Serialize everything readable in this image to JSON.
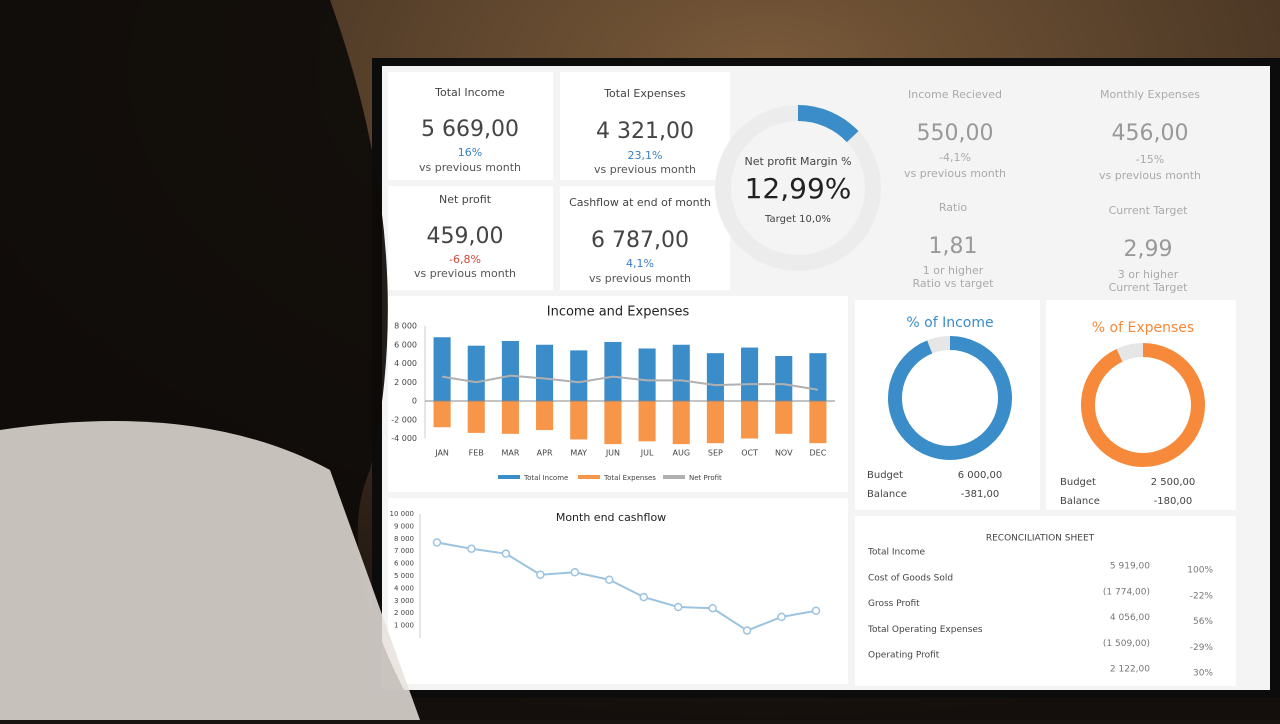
{
  "kpis": [
    {
      "label": "Total Income",
      "value": "5 669,00",
      "lines": [
        "16%",
        "vs previous month"
      ]
    },
    {
      "label": "Total Expenses",
      "value": "4 321,00",
      "lines": [
        "23,1%",
        "vs previous month"
      ]
    },
    {
      "label": "Net profit",
      "value": "459,00",
      "lines": [
        "-6,8%",
        "vs previous month"
      ]
    },
    {
      "label": "Cashflow at end of month",
      "value": "6 787,00",
      "lines": [
        "4,1%",
        "vs previous month"
      ]
    },
    {
      "label": "Income Recieved",
      "value": "550,00",
      "lines": [
        "-4,1%",
        "vs previous month"
      ]
    },
    {
      "label": "Monthly Expenses",
      "value": "456,00",
      "lines": [
        "-15%",
        "vs previous month"
      ]
    },
    {
      "label": "Ratio",
      "value": "1,81",
      "lines": [
        "1 or higher",
        "Ratio vs target"
      ]
    },
    {
      "label": "Current Target",
      "value": "2,99",
      "lines": [
        "3 or higher",
        "Current Target"
      ]
    }
  ],
  "chart_data": [
    {
      "type": "gauge",
      "title": "Net profit Margin %",
      "values": [
        12.99
      ],
      "value_labels": [
        "12,99%"
      ],
      "subtitle": "Target 10,0%",
      "color": "#3a8dc9"
    },
    {
      "type": "bar",
      "title": "Income and Expenses",
      "categories": [
        "JAN",
        "FEB",
        "MAR",
        "APR",
        "MAY",
        "JUN",
        "JUL",
        "AUG",
        "SEP",
        "OCT",
        "NOV",
        "DEC"
      ],
      "series": [
        {
          "name": "Total Income",
          "color": "#3a8dc9",
          "values": [
            6800,
            5900,
            6400,
            6000,
            5400,
            6300,
            5600,
            6000,
            5100,
            5700,
            4800,
            5100
          ]
        },
        {
          "name": "Total Expenses",
          "color": "#f79548",
          "values": [
            -2800,
            -3400,
            -3500,
            -3100,
            -4100,
            -4600,
            -4300,
            -4600,
            -4500,
            -4000,
            -3500,
            -4500
          ]
        },
        {
          "name": "Net Profit",
          "color": "#b0b0b0",
          "values": [
            2600,
            2000,
            2700,
            2400,
            2000,
            2600,
            2200,
            2200,
            1700,
            1800,
            1800,
            1200
          ]
        }
      ],
      "ylim": [
        -4000,
        8000
      ],
      "yticks": [
        {
          "value": -4000,
          "label": "-4 000"
        },
        {
          "value": -2000,
          "label": "-2 000"
        },
        0,
        {
          "value": 2000,
          "label": "2 000"
        },
        {
          "value": 4000,
          "label": "4 000"
        },
        {
          "value": 6000,
          "label": "6 000"
        },
        {
          "value": 8000,
          "label": "8 000"
        }
      ]
    },
    {
      "type": "pie",
      "title": "% of Income",
      "values": [
        94,
        6
      ],
      "colors": [
        "#3a8dc9",
        "#e6e6e6"
      ],
      "rows": [
        {
          "label": "Budget",
          "value": "6 000,00"
        },
        {
          "label": "Balance",
          "value": "-381,00"
        }
      ]
    },
    {
      "type": "pie",
      "title": "% of Expenses",
      "values": [
        93,
        7
      ],
      "colors": [
        "#f7893a",
        "#e6e6e6"
      ],
      "rows": [
        {
          "label": "Budget",
          "value": "2 500,00"
        },
        {
          "label": "Balance",
          "value": "-180,00"
        }
      ]
    },
    {
      "type": "line",
      "title": "Month end cashflow",
      "categories": [
        null,
        null,
        null,
        null,
        null,
        null,
        null,
        null,
        null,
        null,
        null,
        null
      ],
      "series": [
        {
          "name": null,
          "color": "#9cc3df",
          "values": [
            7700,
            7200,
            6800,
            5100,
            5300,
            4700,
            3300,
            2500,
            2400,
            600,
            1700,
            2200
          ]
        }
      ],
      "ylim": [
        0,
        10000
      ],
      "yticks": [
        {
          "value": 1000,
          "label": "1 000"
        },
        {
          "value": 2000,
          "label": "2 000"
        },
        {
          "value": 3000,
          "label": "3 000"
        },
        {
          "value": 4000,
          "label": "4 000"
        },
        {
          "value": 5000,
          "label": "5 000"
        },
        {
          "value": 6000,
          "label": "6 000"
        },
        {
          "value": 7000,
          "label": "7 000"
        },
        {
          "value": 8000,
          "label": "8 000"
        },
        {
          "value": 9000,
          "label": "9 000"
        },
        {
          "value": 10000,
          "label": "10 000"
        }
      ]
    }
  ],
  "table": {
    "title": "RECONCILIATION SHEET",
    "rows": [
      [
        "Total Income",
        "5 919,00",
        "100%"
      ],
      [
        "Cost of Goods Sold",
        "(1 774,00)",
        "-22%"
      ],
      [
        "Gross Profit",
        "4 056,00",
        "56%"
      ],
      [
        "Total Operating Expenses",
        "(1 509,00)",
        "-29%"
      ],
      [
        "Operating Profit",
        "2 122,00",
        "30%"
      ]
    ]
  }
}
